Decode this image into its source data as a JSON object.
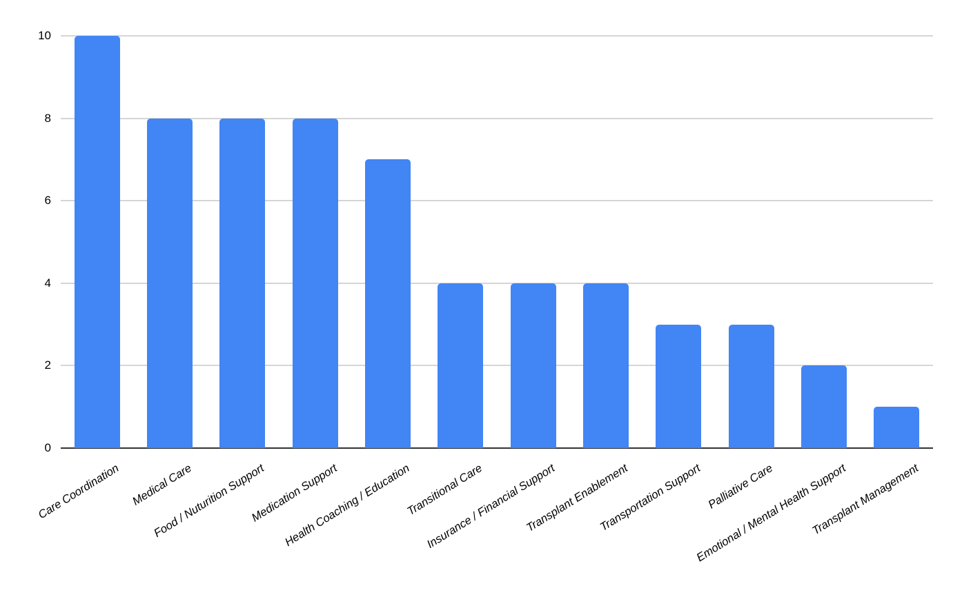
{
  "chart_data": {
    "type": "bar",
    "title": "",
    "xlabel": "",
    "ylabel": "",
    "categories": [
      "Care Coordination",
      "Medical Care",
      "Food / Nuturition Support",
      "Medication Support",
      "Health Coaching / Education",
      "Transitional Care",
      "Insurance / Financial Support",
      "Transplant Enablement",
      "Transportation Support",
      "Palliative Care",
      "Emotional / Mental Health Support",
      "Transplant Management"
    ],
    "values": [
      10,
      8,
      8,
      8,
      7,
      4,
      4,
      4,
      3,
      3,
      2,
      1
    ],
    "ylim": [
      0,
      10
    ],
    "yticks": [
      0,
      2,
      4,
      6,
      8,
      10
    ],
    "grid": true,
    "legend": false,
    "bar_color": "#4285f4",
    "gridline_color": "#d5d5d5",
    "axis_line_color": "#333333",
    "text_color": "#000000"
  }
}
